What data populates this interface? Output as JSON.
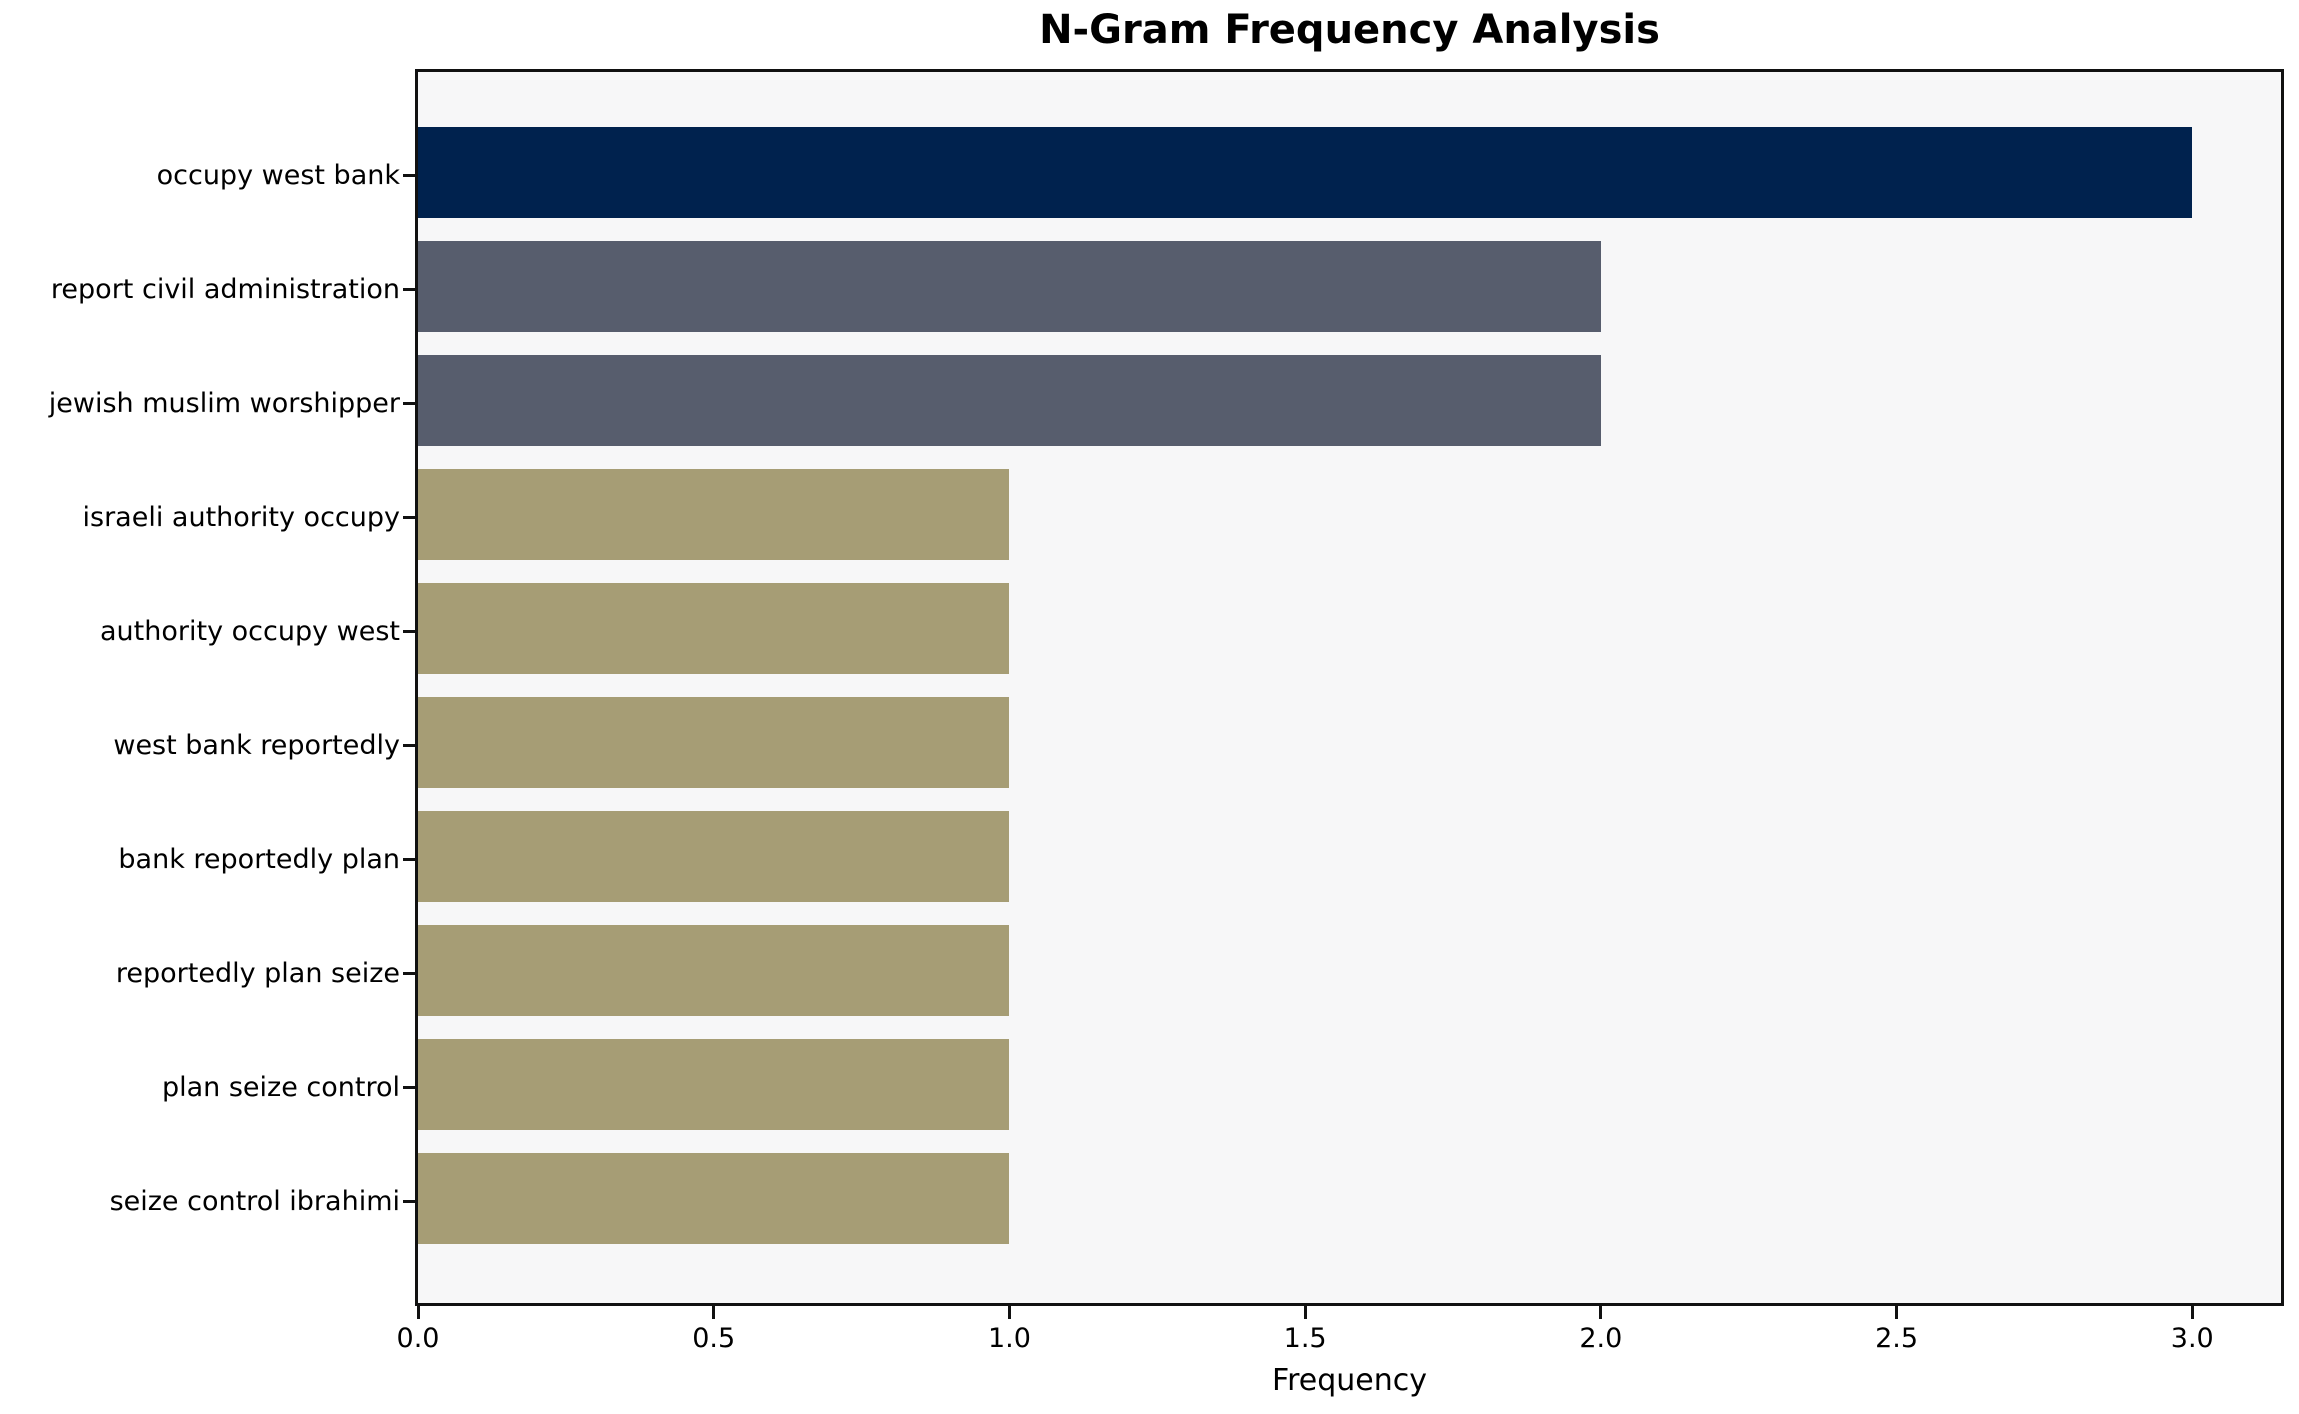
{
  "chart_data": {
    "type": "bar",
    "orientation": "horizontal",
    "title": "N-Gram Frequency Analysis",
    "xlabel": "Frequency",
    "ylabel": "",
    "categories": [
      "occupy west bank",
      "report civil administration",
      "jewish muslim worshipper",
      "israeli authority occupy",
      "authority occupy west",
      "west bank reportedly",
      "bank reportedly plan",
      "reportedly plan seize",
      "plan seize control",
      "seize control ibrahimi"
    ],
    "values": [
      3,
      2,
      2,
      1,
      1,
      1,
      1,
      1,
      1,
      1
    ],
    "x_ticks": [
      "0.0",
      "0.5",
      "1.0",
      "1.5",
      "2.0",
      "2.5",
      "3.0"
    ],
    "xlim": [
      0,
      3.15
    ],
    "bar_height_fraction": 0.8,
    "grid": false,
    "legend": "none",
    "colors": {
      "bars": [
        "#00224E",
        "#575D6D",
        "#575D6D",
        "#A69D75",
        "#A69D75",
        "#A69D75",
        "#A69D75",
        "#A69D75",
        "#A69D75",
        "#A69D75"
      ],
      "plot_background": "#F7F7F8",
      "figure_background": "#FFFFFF",
      "spine": "#111111",
      "text": "#000000"
    }
  }
}
